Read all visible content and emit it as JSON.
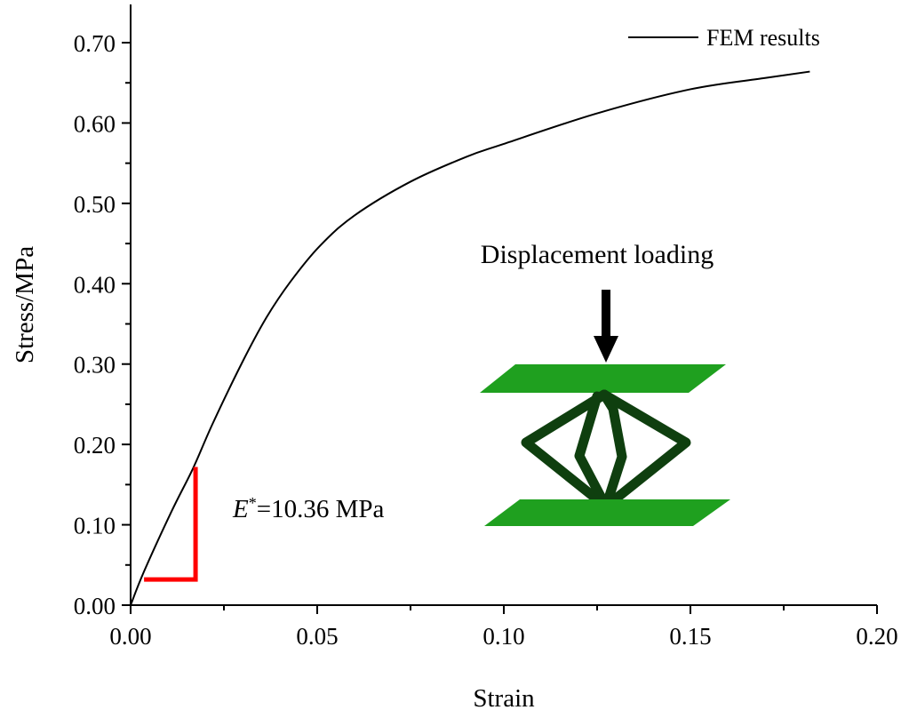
{
  "chart_data": {
    "type": "line",
    "title": "",
    "xlabel": "Strain",
    "ylabel": "Stress/MPa",
    "xlim": [
      0,
      0.2
    ],
    "ylim": [
      0,
      0.7
    ],
    "xticks": [
      "0.00",
      "0.05",
      "0.10",
      "0.15",
      "0.20"
    ],
    "yticks": [
      "0.00",
      "0.10",
      "0.20",
      "0.30",
      "0.40",
      "0.50",
      "0.60",
      "0.70"
    ],
    "grid": false,
    "legend_position": "top-right",
    "series": [
      {
        "name": "FEM results",
        "color": "#000000",
        "x": [
          0,
          0.0036,
          0.011,
          0.0167,
          0.022,
          0.03,
          0.0364,
          0.0429,
          0.0507,
          0.06,
          0.075,
          0.09,
          0.1,
          0.125,
          0.15,
          0.17,
          0.182
        ],
        "y": [
          0,
          0.042,
          0.117,
          0.17,
          0.226,
          0.303,
          0.358,
          0.403,
          0.447,
          0.485,
          0.527,
          0.558,
          0.574,
          0.612,
          0.642,
          0.656,
          0.664
        ]
      }
    ],
    "annotations": {
      "modulus_label_symbol": "E",
      "modulus_label_sup": "*",
      "modulus_label_value": "=10.36 MPa",
      "slope_triangle": {
        "color": "#ff0000",
        "x": [
          0.0036,
          0.0174
        ],
        "y": [
          0.032,
          0.172
        ]
      },
      "inset_label": "Displacement loading",
      "inset_colors": {
        "plate": "#1fa01f",
        "strut": "#0f3f0f"
      }
    }
  }
}
